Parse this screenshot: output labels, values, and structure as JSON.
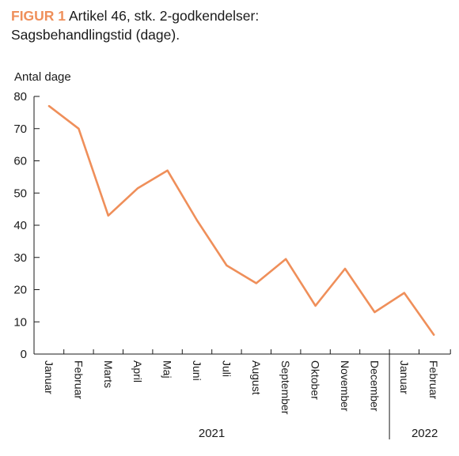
{
  "figure_label": "FIGUR 1",
  "title": "Artikel 46, stk. 2-godkendelser:",
  "subtitle": "Sagsbehandlingstid (dage).",
  "colors": {
    "line": "#ef8f5a",
    "accent": "#ef8f5a",
    "axis": "#1a1a1a"
  },
  "chart_data": {
    "type": "line",
    "ylabel": "Antal dage",
    "ylim": [
      0,
      80
    ],
    "yticks": [
      0,
      10,
      20,
      30,
      40,
      50,
      60,
      70,
      80
    ],
    "categories": [
      "Januar",
      "Februar",
      "Marts",
      "April",
      "Maj",
      "Juni",
      "Juli",
      "August",
      "September",
      "Oktober",
      "November",
      "December",
      "Januar",
      "Februar"
    ],
    "values": [
      77,
      70,
      43,
      51.5,
      57,
      41.5,
      27.5,
      22,
      29.5,
      15,
      26.5,
      13,
      19,
      6
    ],
    "year_groups": [
      {
        "label": "2021",
        "start": 0,
        "end": 11
      },
      {
        "label": "2022",
        "start": 12,
        "end": 13
      }
    ],
    "grid": false
  }
}
